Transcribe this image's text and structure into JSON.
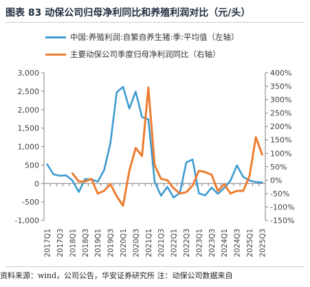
{
  "figure": {
    "title": "图表 83  动保公司归母净利同比和养殖利润对比（元/头）",
    "source": "资料来源：wind，公司公告，华安证券研究所 注：动保公司数据来自"
  },
  "colors": {
    "series_left": "#3d9ad1",
    "series_right": "#ed7d31",
    "axis": "#7f7f7f",
    "text": "#404040"
  },
  "chart_data": {
    "type": "line",
    "x": [
      "2017Q1",
      "2017Q2",
      "2017Q3",
      "2017Q4",
      "2018Q1",
      "2018Q2",
      "2018Q3",
      "2018Q4",
      "2019Q1",
      "2019Q2",
      "2019Q3",
      "2019Q4",
      "2020Q1",
      "2020Q2",
      "2020Q3",
      "2020Q4",
      "2021Q1",
      "2021Q2",
      "2021Q3",
      "2021Q4",
      "2022Q1",
      "2022Q2",
      "2022Q3",
      "2022Q4",
      "2023Q1",
      "2023Q2",
      "2023Q3",
      "2023Q4",
      "2024Q1",
      "2024Q2",
      "2024Q3",
      "2024Q4",
      "2025Q1",
      "2025Q2",
      "2025Q3"
    ],
    "xticks": [
      "2017Q1",
      "2017Q3",
      "2018Q1",
      "2018Q3",
      "2019Q1",
      "2019Q3",
      "2020Q1",
      "2020Q3",
      "2021Q1",
      "2021Q3",
      "2022Q1",
      "2022Q3",
      "2023Q1",
      "2023Q3",
      "2024Q1",
      "2024Q3",
      "2025Q1",
      "2025Q3"
    ],
    "y_left": {
      "min": -1000,
      "max": 3000,
      "ticks": [
        -1000,
        -500,
        0,
        500,
        1000,
        1500,
        2000,
        2500,
        3000
      ],
      "labels": [
        "-1,000",
        "-500",
        "0",
        "500",
        "1,000",
        "1,500",
        "2,000",
        "2,500",
        "3,000"
      ]
    },
    "y_right": {
      "min": -150,
      "max": 400,
      "ticks": [
        -150,
        -100,
        -50,
        0,
        50,
        100,
        150,
        200,
        250,
        300,
        350,
        400
      ],
      "labels": [
        "-150%",
        "-100%",
        "-50%",
        "0%",
        "50%",
        "100%",
        "150%",
        "200%",
        "250%",
        "300%",
        "350%",
        "400%"
      ]
    },
    "series": [
      {
        "name": "中国:养殖利润:自繁自养生猪:季:平均值（左轴）",
        "axis": "left",
        "values": [
          520,
          250,
          210,
          220,
          80,
          -230,
          120,
          110,
          50,
          360,
          1090,
          2470,
          2620,
          2030,
          2490,
          1800,
          1740,
          50,
          -330,
          -90,
          -380,
          -250,
          570,
          650,
          -270,
          -320,
          -110,
          -280,
          -120,
          80,
          490,
          180,
          80,
          40,
          30
        ]
      },
      {
        "name": "主要动保公司季度归母净利润同比（右轴）",
        "axis": "right",
        "values": [
          null,
          null,
          null,
          null,
          25,
          -5,
          -5,
          5,
          -50,
          -40,
          -15,
          -60,
          -95,
          35,
          120,
          90,
          345,
          55,
          5,
          0,
          -30,
          -50,
          -45,
          -20,
          35,
          30,
          20,
          -40,
          -15,
          -50,
          -40,
          -40,
          15,
          160,
          95
        ]
      }
    ]
  }
}
